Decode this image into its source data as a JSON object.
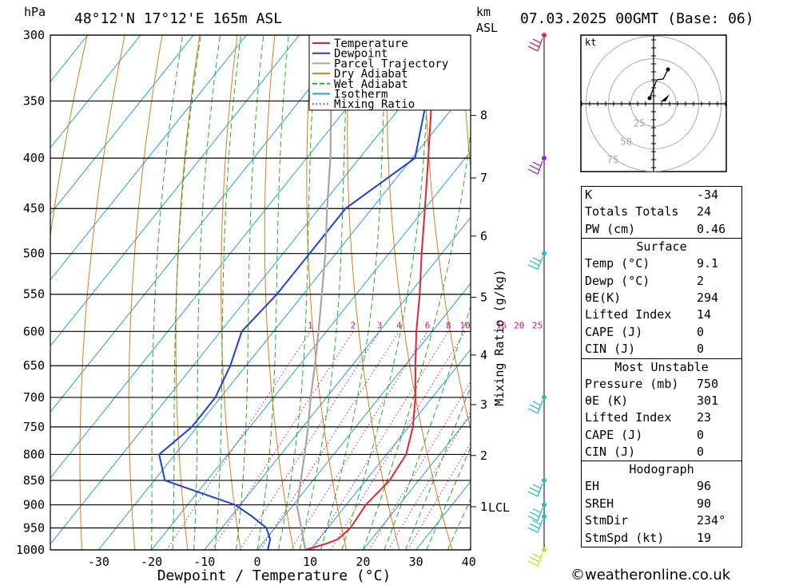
{
  "header": {
    "hpa_label": "hPa",
    "location": "48°12'N  17°12'E  165m  ASL",
    "km_label": "km",
    "asl_label": "ASL",
    "datetime": "07.03.2025  00GMT  (Base: 06)"
  },
  "chart_data": {
    "type": "skew-t log-p",
    "xlabel": "Dewpoint / Temperature (°C)",
    "ylabel": "hPa",
    "right_axis_label": "Mixing Ratio (g/kg)",
    "x_ticks": [
      -30,
      -20,
      -10,
      0,
      10,
      20,
      30,
      40
    ],
    "pressure_levels": [
      300,
      350,
      400,
      450,
      500,
      550,
      600,
      650,
      700,
      750,
      800,
      850,
      900,
      950,
      1000
    ],
    "km_ticks": [
      {
        "km": 1,
        "p": 904
      },
      {
        "km": 2,
        "p": 802
      },
      {
        "km": 3,
        "p": 712
      },
      {
        "km": 4,
        "p": 634
      },
      {
        "km": 5,
        "p": 554
      },
      {
        "km": 6,
        "p": 480
      },
      {
        "km": 7,
        "p": 419
      },
      {
        "km": 8,
        "p": 362
      }
    ],
    "lcl": {
      "label": "LCL",
      "p": 904
    },
    "mixing_ratio_labels": [
      1,
      2,
      3,
      4,
      6,
      8,
      10,
      16,
      20,
      25
    ],
    "legend": [
      "Temperature",
      "Dewpoint",
      "Parcel Trajectory",
      "Dry Adiabat",
      "Wet Adiabat",
      "Isotherm",
      "Mixing Ratio"
    ],
    "legend_position": "top-right",
    "colors": {
      "temperature": "#e8232f",
      "dewpoint": "#1b3fe6",
      "parcel": "#a6a6a6",
      "dry_adiabat": "#e07a1a",
      "wet_adiabat": "#19b51a",
      "isotherm": "#1aa3e0",
      "mixing_ratio": "#d0147a"
    },
    "series": [
      {
        "name": "Temperature",
        "points": [
          {
            "p": 1000,
            "t": 9.1
          },
          {
            "p": 985,
            "t": 12.2
          },
          {
            "p": 975,
            "t": 13.7
          },
          {
            "p": 950,
            "t": 14.3
          },
          {
            "p": 925,
            "t": 14.0
          },
          {
            "p": 900,
            "t": 13.7
          },
          {
            "p": 850,
            "t": 14.5
          },
          {
            "p": 800,
            "t": 13.7
          },
          {
            "p": 750,
            "t": 10.8
          },
          {
            "p": 700,
            "t": 6.8
          },
          {
            "p": 650,
            "t": 2.0
          },
          {
            "p": 600,
            "t": -3.0
          },
          {
            "p": 550,
            "t": -8.0
          },
          {
            "p": 500,
            "t": -13.8
          },
          {
            "p": 450,
            "t": -20.0
          },
          {
            "p": 400,
            "t": -27.0
          },
          {
            "p": 350,
            "t": -35.0
          },
          {
            "p": 300,
            "t": -44.0
          }
        ]
      },
      {
        "name": "Dewpoint",
        "points": [
          {
            "p": 1000,
            "t": 2.0
          },
          {
            "p": 975,
            "t": 0.8
          },
          {
            "p": 950,
            "t": -1.6
          },
          {
            "p": 925,
            "t": -6.0
          },
          {
            "p": 900,
            "t": -11.0
          },
          {
            "p": 850,
            "t": -28.0
          },
          {
            "p": 800,
            "t": -33.0
          },
          {
            "p": 750,
            "t": -31.0
          },
          {
            "p": 700,
            "t": -31.0
          },
          {
            "p": 650,
            "t": -33.0
          },
          {
            "p": 600,
            "t": -36.0
          },
          {
            "p": 550,
            "t": -35.0
          },
          {
            "p": 500,
            "t": -35.0
          },
          {
            "p": 450,
            "t": -35.0
          },
          {
            "p": 400,
            "t": -29.5
          },
          {
            "p": 350,
            "t": -36.0
          },
          {
            "p": 300,
            "t": -45.0
          }
        ]
      },
      {
        "name": "Parcel Trajectory",
        "points": [
          {
            "p": 1000,
            "t": 9.1
          },
          {
            "p": 950,
            "t": 5.0
          },
          {
            "p": 904,
            "t": 1.0
          },
          {
            "p": 850,
            "t": -2.3
          },
          {
            "p": 800,
            "t": -5.5
          },
          {
            "p": 750,
            "t": -9.0
          },
          {
            "p": 700,
            "t": -13.0
          },
          {
            "p": 650,
            "t": -17.0
          },
          {
            "p": 600,
            "t": -21.5
          },
          {
            "p": 550,
            "t": -26.5
          },
          {
            "p": 500,
            "t": -32.0
          },
          {
            "p": 450,
            "t": -38.5
          },
          {
            "p": 400,
            "t": -45.5
          },
          {
            "p": 350,
            "t": -54.0
          },
          {
            "p": 300,
            "t": -62.0
          }
        ]
      }
    ],
    "wind_barbs": [
      {
        "p": 300,
        "color": "#e0206a"
      },
      {
        "p": 400,
        "color": "#a020d0"
      },
      {
        "p": 500,
        "color": "#20c0c8"
      },
      {
        "p": 700,
        "color": "#20c0c8"
      },
      {
        "p": 850,
        "color": "#20c0c8"
      },
      {
        "p": 900,
        "color": "#20c0c8"
      },
      {
        "p": 925,
        "color": "#20c0c8"
      },
      {
        "p": 1000,
        "color": "#c8e020"
      }
    ],
    "hodograph": {
      "unit_label": "kt",
      "ring_labels": [
        "25",
        "50",
        "75"
      ]
    }
  },
  "stats": {
    "general": [
      {
        "k": "K",
        "v": "-34"
      },
      {
        "k": "Totals Totals",
        "v": "24"
      },
      {
        "k": "PW (cm)",
        "v": "0.46"
      }
    ],
    "surface": {
      "title": "Surface",
      "rows": [
        {
          "k": "Temp (°C)",
          "v": "9.1"
        },
        {
          "k": "Dewp (°C)",
          "v": "2"
        },
        {
          "k": "θE(K)",
          "v": "294"
        },
        {
          "k": "Lifted Index",
          "v": "14"
        },
        {
          "k": "CAPE (J)",
          "v": "0"
        },
        {
          "k": "CIN (J)",
          "v": "0"
        }
      ]
    },
    "most_unstable": {
      "title": "Most Unstable",
      "rows": [
        {
          "k": "Pressure (mb)",
          "v": "750"
        },
        {
          "k": "θE (K)",
          "v": "301"
        },
        {
          "k": "Lifted Index",
          "v": "23"
        },
        {
          "k": "CAPE (J)",
          "v": "0"
        },
        {
          "k": "CIN (J)",
          "v": "0"
        }
      ]
    },
    "hodograph": {
      "title": "Hodograph",
      "rows": [
        {
          "k": "EH",
          "v": "96"
        },
        {
          "k": "SREH",
          "v": "90"
        },
        {
          "k": "StmDir",
          "v": "234°"
        },
        {
          "k": "StmSpd (kt)",
          "v": "19"
        }
      ]
    }
  },
  "footer": {
    "text": "©weatheronline.co.uk"
  }
}
